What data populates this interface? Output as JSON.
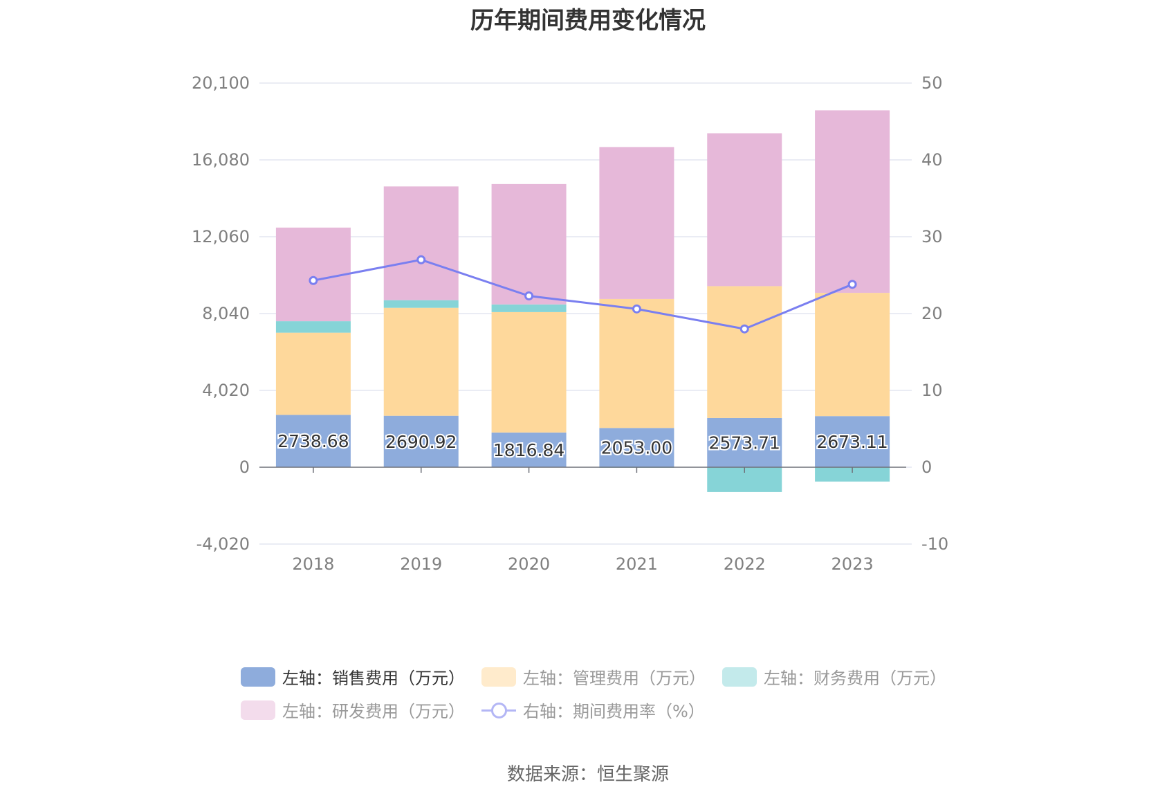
{
  "title": "历年期间费用变化情况",
  "source": "数据来源：恒生聚源",
  "chart_data": {
    "type": "bar",
    "stacked": true,
    "categories": [
      "2018",
      "2019",
      "2020",
      "2021",
      "2022",
      "2023"
    ],
    "left_axis": {
      "min": -4020,
      "max": 20100,
      "ticks": [
        -4020,
        0,
        4020,
        8040,
        12060,
        16080,
        20100
      ],
      "tick_labels": [
        "-4,020",
        "0",
        "4,020",
        "8,040",
        "12,060",
        "16,080",
        "20,100"
      ]
    },
    "right_axis": {
      "min": -10,
      "max": 50,
      "ticks": [
        -10,
        0,
        10,
        20,
        30,
        40,
        50
      ],
      "tick_labels": [
        "-10",
        "0",
        "10",
        "20",
        "30",
        "40",
        "50"
      ]
    },
    "series": [
      {
        "name": "左轴：销售费用（万元）",
        "axis": "left",
        "type": "bar",
        "color": "#8eacdc",
        "values": [
          2738.68,
          2690.92,
          1816.84,
          2053.0,
          2573.71,
          2673.11
        ],
        "labels": [
          "2738.68",
          "2690.92",
          "1816.84",
          "2053.00",
          "2573.71",
          "2673.11"
        ]
      },
      {
        "name": "左轴：管理费用（万元）",
        "axis": "left",
        "type": "bar",
        "color": "#fed89b",
        "values": [
          4300,
          5650,
          6300,
          6750,
          6900,
          6450
        ]
      },
      {
        "name": "左轴：财务费用（万元）",
        "axis": "left",
        "type": "bar",
        "color": "#86d4d7",
        "values": [
          600,
          400,
          400,
          -30,
          -1300,
          -750
        ]
      },
      {
        "name": "左轴：研发费用（万元）",
        "axis": "left",
        "type": "bar",
        "color": "#e6b8d9",
        "values": [
          4900,
          5950,
          6300,
          7950,
          8000,
          9550
        ]
      },
      {
        "name": "右轴：期间费用率（%）",
        "axis": "right",
        "type": "line",
        "color": "#7a7ff0",
        "values": [
          24.3,
          27.0,
          22.3,
          20.6,
          18.0,
          23.8
        ]
      }
    ],
    "grid": true,
    "legend_position": "bottom"
  },
  "legend": [
    {
      "label": "左轴：销售费用（万元）",
      "color": "#8eacdc",
      "active": true
    },
    {
      "label": "左轴：管理费用（万元）",
      "color": "#ffebcc"
    },
    {
      "label": "左轴：财务费用（万元）",
      "color": "#c3eaeb"
    },
    {
      "label": "左轴：研发费用（万元）",
      "color": "#f3dcec"
    },
    {
      "label": "右轴：期间费用率（%）",
      "color": "#b3b6f5"
    }
  ]
}
